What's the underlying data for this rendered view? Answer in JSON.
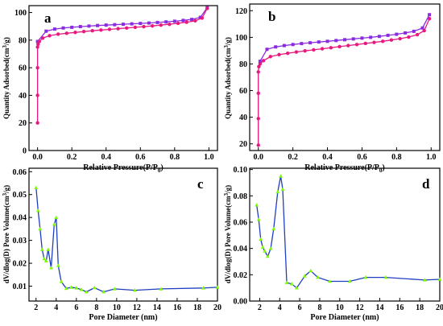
{
  "chart_data": [
    {
      "type": "line",
      "panel_label": "a",
      "xlabel": "Relative Pressure(P/P",
      "xlabel_sub": "0",
      "xlabel_end": ")",
      "ylabel": "Quantity Adsorbed(cm",
      "ylabel_sup": "3",
      "ylabel_end": "/g)",
      "xlim": [
        -0.05,
        1.05
      ],
      "ylim": [
        0,
        105
      ],
      "xticks": [
        0.0,
        0.2,
        0.4,
        0.6,
        0.8,
        1.0
      ],
      "xtick_labels": [
        "0.0",
        "0.2",
        "0.4",
        "0.6",
        "0.8",
        "1.0"
      ],
      "yticks": [
        0,
        20,
        40,
        60,
        80,
        100
      ],
      "ytick_labels": [
        "0",
        "20",
        "40",
        "60",
        "80",
        "100"
      ],
      "grid": false,
      "series": [
        {
          "color": "#8a2be2",
          "marker": "square",
          "x": [
            0.0,
            0.05,
            0.1,
            0.15,
            0.2,
            0.25,
            0.3,
            0.35,
            0.4,
            0.45,
            0.5,
            0.55,
            0.6,
            0.65,
            0.7,
            0.75,
            0.8,
            0.85,
            0.9,
            0.95,
            0.99
          ],
          "y": [
            79,
            86.5,
            88,
            88.8,
            89.3,
            89.8,
            90.2,
            90.6,
            90.9,
            91.2,
            91.5,
            91.8,
            92.1,
            92.4,
            92.8,
            93.2,
            93.7,
            94.3,
            95,
            96.5,
            103.5
          ]
        },
        {
          "color": "#e6197f",
          "marker": "circle",
          "x": [
            0.0,
            0.0,
            0.0,
            0.0,
            0.003,
            0.01,
            0.03,
            0.07,
            0.12,
            0.17,
            0.22,
            0.27,
            0.32,
            0.37,
            0.42,
            0.47,
            0.52,
            0.57,
            0.62,
            0.67,
            0.72,
            0.77,
            0.82,
            0.87,
            0.92,
            0.96,
            0.99
          ],
          "y": [
            20,
            40,
            60,
            75,
            77,
            79,
            81.5,
            83.2,
            84.3,
            85,
            85.6,
            86.2,
            86.8,
            87.3,
            87.8,
            88.3,
            88.8,
            89.3,
            89.8,
            90.3,
            90.9,
            91.5,
            92.2,
            93,
            94,
            96,
            103
          ]
        }
      ]
    },
    {
      "type": "line",
      "panel_label": "b",
      "xlabel": "Relative Pressure(P/P",
      "xlabel_sub": "0",
      "xlabel_end": ")",
      "ylabel": "Quantity Adsorbed(cm",
      "ylabel_sup": "3",
      "ylabel_end": "/g)",
      "xlim": [
        -0.05,
        1.05
      ],
      "ylim": [
        15,
        125
      ],
      "xticks": [
        0.0,
        0.2,
        0.4,
        0.6,
        0.8,
        1.0
      ],
      "xtick_labels": [
        "0.0",
        "0.2",
        "0.4",
        "0.6",
        "0.8",
        "1.0"
      ],
      "yticks": [
        20,
        40,
        60,
        80,
        100,
        120
      ],
      "ytick_labels": [
        "20",
        "40",
        "60",
        "80",
        "100",
        "120"
      ],
      "grid": false,
      "series": [
        {
          "color": "#8a2be2",
          "marker": "square",
          "x": [
            0.01,
            0.05,
            0.1,
            0.15,
            0.2,
            0.25,
            0.3,
            0.35,
            0.4,
            0.45,
            0.5,
            0.55,
            0.6,
            0.65,
            0.7,
            0.75,
            0.8,
            0.85,
            0.9,
            0.95,
            0.99
          ],
          "y": [
            82,
            91,
            92.8,
            93.8,
            94.6,
            95.3,
            95.9,
            96.5,
            97,
            97.6,
            98.2,
            98.8,
            99.4,
            100,
            100.7,
            101.5,
            102.3,
            103.3,
            104.5,
            107,
            117
          ]
        },
        {
          "color": "#e6197f",
          "marker": "circle",
          "x": [
            0.0,
            0.0,
            0.0,
            0.0,
            0.003,
            0.01,
            0.03,
            0.07,
            0.12,
            0.17,
            0.22,
            0.27,
            0.32,
            0.37,
            0.42,
            0.47,
            0.52,
            0.57,
            0.62,
            0.67,
            0.72,
            0.77,
            0.82,
            0.87,
            0.92,
            0.96,
            0.99
          ],
          "y": [
            19,
            39,
            58,
            74,
            78,
            80,
            82.5,
            85.5,
            87,
            88,
            89,
            89.8,
            90.6,
            91.4,
            92.2,
            93,
            93.8,
            94.6,
            95.4,
            96.2,
            97,
            98,
            99,
            100.2,
            102,
            105,
            114
          ]
        }
      ]
    },
    {
      "type": "line",
      "panel_label": "c",
      "xlabel": "Pore Diameter (nm)",
      "ylabel": "dV/dlog(D) Pore Volume(cm",
      "ylabel_sup": "3",
      "ylabel_end": "/g)",
      "xlim": [
        1.3,
        20
      ],
      "ylim": [
        0.0035,
        0.0615
      ],
      "xticks": [
        2,
        4,
        6,
        8,
        10,
        12,
        14,
        16,
        18,
        20
      ],
      "xtick_labels": [
        "2",
        "4",
        "6",
        "8",
        "10",
        "12",
        "14",
        "16",
        "18",
        "20"
      ],
      "yticks": [
        0.01,
        0.02,
        0.03,
        0.04,
        0.05,
        0.06
      ],
      "ytick_labels": [
        "0.01",
        "0.02",
        "0.03",
        "0.04",
        "0.05",
        "0.06"
      ],
      "grid": false,
      "series": [
        {
          "color": "#1f3fbf",
          "marker_color": "#7cfc00",
          "marker": "triangle",
          "x": [
            2.0,
            2.2,
            2.4,
            2.6,
            2.8,
            3.0,
            3.2,
            3.5,
            3.8,
            4.0,
            4.2,
            4.5,
            5.0,
            5.5,
            6.0,
            6.5,
            7.0,
            7.8,
            8.7,
            9.8,
            11.8,
            14.4,
            18.6,
            20.0
          ],
          "y": [
            0.053,
            0.043,
            0.035,
            0.026,
            0.022,
            0.021,
            0.026,
            0.018,
            0.037,
            0.04,
            0.019,
            0.012,
            0.009,
            0.0095,
            0.0092,
            0.0085,
            0.0075,
            0.0093,
            0.0075,
            0.0088,
            0.0082,
            0.0088,
            0.0092,
            0.0095
          ]
        }
      ]
    },
    {
      "type": "line",
      "panel_label": "d",
      "xlabel": "Pore Diameter (nm)",
      "ylabel": "dV/dlog(D) Pore Volume(cm",
      "ylabel_sup": "3",
      "ylabel_end": "/g)",
      "xlim": [
        1.0,
        20
      ],
      "ylim": [
        0.0,
        0.101
      ],
      "xticks": [
        2,
        4,
        6,
        8,
        10,
        12,
        14,
        16,
        18,
        20
      ],
      "xtick_labels": [
        "2",
        "4",
        "6",
        "8",
        "10",
        "12",
        "14",
        "16",
        "18",
        "20"
      ],
      "yticks": [
        0.0,
        0.02,
        0.04,
        0.06,
        0.08,
        0.1
      ],
      "ytick_labels": [
        "0.00",
        "0.02",
        "0.04",
        "0.06",
        "0.08",
        "0.10"
      ],
      "grid": false,
      "series": [
        {
          "color": "#1f3fbf",
          "marker_color": "#7cfc00",
          "marker": "triangle",
          "x": [
            1.7,
            1.9,
            2.1,
            2.3,
            2.5,
            2.8,
            3.1,
            3.4,
            3.8,
            4.1,
            4.3,
            4.7,
            5.2,
            5.7,
            6.5,
            7.1,
            7.8,
            9.0,
            11.0,
            12.6,
            14.6,
            18.5,
            20.0
          ],
          "y": [
            0.073,
            0.062,
            0.047,
            0.041,
            0.038,
            0.034,
            0.04,
            0.055,
            0.083,
            0.095,
            0.085,
            0.014,
            0.013,
            0.01,
            0.019,
            0.023,
            0.018,
            0.015,
            0.015,
            0.018,
            0.018,
            0.016,
            0.0165
          ]
        }
      ]
    }
  ]
}
